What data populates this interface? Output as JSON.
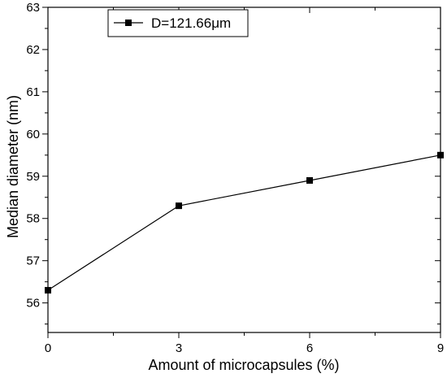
{
  "chart_data": {
    "type": "line",
    "xlabel": "Amount of microcapsules (%)",
    "ylabel": "Median diameter (nm)",
    "xlim": [
      0,
      9
    ],
    "ylim": [
      55.3,
      63
    ],
    "x_ticks": [
      "0",
      "3",
      "6",
      "9"
    ],
    "y_ticks": [
      "56",
      "57",
      "58",
      "59",
      "60",
      "61",
      "62",
      "63"
    ],
    "legend_position": "top-left",
    "grid": false,
    "series": [
      {
        "name": "D=121.66μm",
        "marker": "square",
        "color": "#000000",
        "x": [
          0,
          3,
          6,
          9
        ],
        "y": [
          56.3,
          58.3,
          58.9,
          59.5
        ]
      }
    ]
  }
}
